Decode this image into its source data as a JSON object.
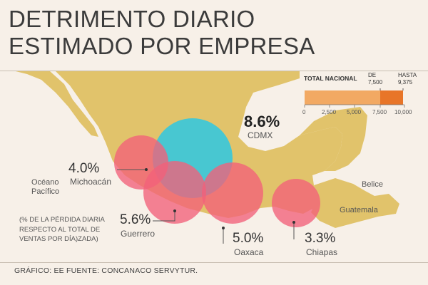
{
  "title_line1": "DETRIMENTO DIARIO",
  "title_line2": "ESTIMADO POR EMPRESA",
  "legend": {
    "title": "TOTAL NACIONAL",
    "de_label": "DE",
    "de_value": "7,500",
    "hasta_label": "HASTA",
    "hasta_value": "9,375",
    "ticks": [
      "0",
      "2,500",
      "5,000",
      "7,500",
      "10,000"
    ],
    "range": {
      "min": 0,
      "max": 10000,
      "low": 7500,
      "high": 9375
    },
    "colors": {
      "low": "#f2a963",
      "high": "#e87528"
    }
  },
  "regions": [
    {
      "name": "CDMX",
      "percent": "8.6%",
      "color": "#3fc7d7"
    },
    {
      "name": "Michoacán",
      "percent": "4.0%",
      "color": "#f2607a"
    },
    {
      "name": "Guerrero",
      "percent": "5.6%",
      "color": "#f2607a"
    },
    {
      "name": "Oaxaca",
      "percent": "5.0%",
      "color": "#f2607a"
    },
    {
      "name": "Chiapas",
      "percent": "3.3%",
      "color": "#f2607a"
    }
  ],
  "places": {
    "ocean_line1": "Océano",
    "ocean_line2": "Pacífico",
    "belice": "Belice",
    "guatemala": "Guatemala"
  },
  "note": "(% DE LA PÉRDIDA DIARIA RESPECTO AL TOTAL DE VENTAS POR DÍA)ZADA)",
  "footer": "GRÁFICO: EE  FUENTE: CONCANACO SERVYTUR.",
  "colors": {
    "land": "#e1c36b",
    "background": "#f7f0e8"
  }
}
